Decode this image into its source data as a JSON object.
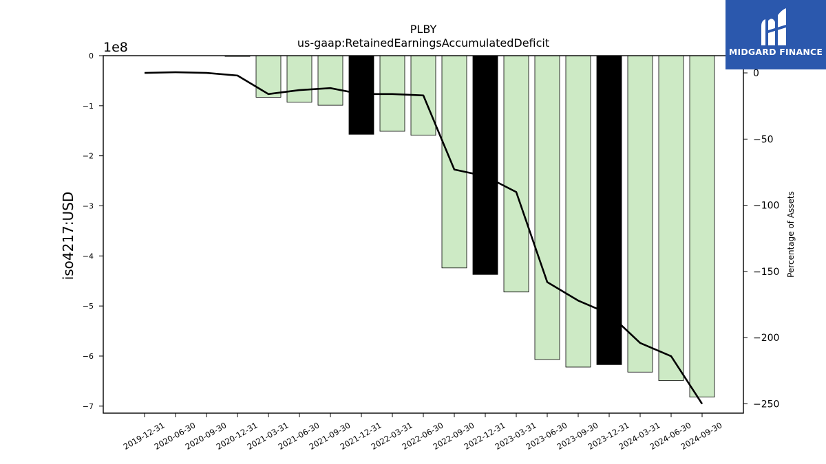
{
  "chart_data": {
    "type": "bar",
    "title": "PLBY",
    "subtitle": "us-gaap:RetainedEarningsAccumulatedDeficit",
    "ylabel": "iso4217:USD",
    "y_multiplier": "1e8",
    "y2label": "Percentage of Assets",
    "categories": [
      "2019-12-31",
      "2020-06-30",
      "2020-09-30",
      "2020-12-31",
      "2021-03-31",
      "2021-06-30",
      "2021-09-30",
      "2021-12-31",
      "2022-03-31",
      "2022-06-30",
      "2022-09-30",
      "2022-12-31",
      "2023-03-31",
      "2023-06-30",
      "2023-09-30",
      "2023-12-31",
      "2024-03-31",
      "2024-06-30",
      "2024-09-30"
    ],
    "values": [
      0,
      0,
      0,
      -1500000,
      -83000000,
      -93000000,
      -99000000,
      -157000000,
      -151000000,
      -159000000,
      -424000000,
      -437000000,
      -472000000,
      -607000000,
      -622000000,
      -617000000,
      -632000000,
      -649000000,
      -682000000
    ],
    "bar_colors": [
      "#cdeac5",
      "#cdeac5",
      "#cdeac5",
      "#cdeac5",
      "#cdeac5",
      "#cdeac5",
      "#cdeac5",
      "#000000",
      "#cdeac5",
      "#cdeac5",
      "#cdeac5",
      "#000000",
      "#cdeac5",
      "#cdeac5",
      "#cdeac5",
      "#000000",
      "#cdeac5",
      "#cdeac5",
      "#cdeac5"
    ],
    "ylim": [
      -714000000,
      0
    ],
    "yticks": [
      0,
      -100000000,
      -200000000,
      -300000000,
      -400000000,
      -500000000,
      -600000000,
      -700000000
    ],
    "ytick_labels": [
      "0",
      "−1",
      "−2",
      "−3",
      "−4",
      "−5",
      "−6",
      "−7"
    ],
    "line": {
      "name": "Percentage of Assets",
      "color": "#000000",
      "values": [
        0,
        0.5,
        0,
        -2,
        -16,
        -13,
        -11.5,
        -16,
        -16,
        -17,
        -73,
        -78,
        -90,
        -158,
        -172,
        -182,
        -204,
        -214,
        -250
      ]
    },
    "y2lim": [
      -257,
      13
    ],
    "y2ticks": [
      0,
      -50,
      -100,
      -150,
      -200,
      -250
    ],
    "y2tick_labels": [
      "0",
      "−50",
      "−100",
      "−150",
      "−200",
      "−250"
    ],
    "grid": false,
    "legend": "none"
  },
  "logo": {
    "text": "MIDGARD FINANCE"
  },
  "colors": {
    "bar_default": "#cdeac5",
    "bar_highlight": "#000000",
    "logo_bg": "#2b58ad"
  }
}
